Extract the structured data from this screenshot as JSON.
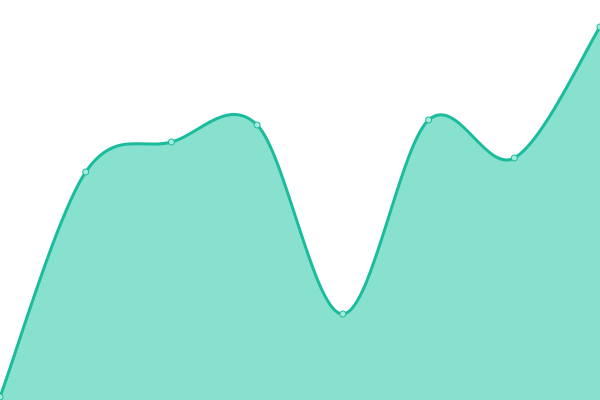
{
  "chart_data": {
    "type": "area",
    "x": [
      0,
      1,
      2,
      3,
      4,
      5,
      6,
      7
    ],
    "values": [
      3,
      228,
      258,
      275,
      86,
      280,
      242,
      373
    ],
    "ylim": [
      0,
      400
    ],
    "grid": false,
    "axes_visible": false,
    "curve": "smooth",
    "colors": {
      "line": "#1abc9c",
      "fill": "#88e0cf",
      "point_fill": "#a8eadc",
      "point_stroke": "#1abc9c"
    }
  }
}
